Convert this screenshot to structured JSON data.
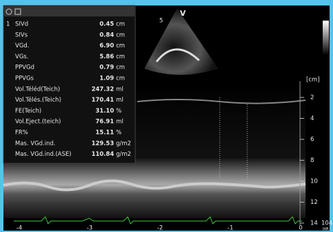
{
  "header": {
    "index": "1"
  },
  "measurements": [
    {
      "label": "SIVd",
      "value": "0.45",
      "unit": "cm"
    },
    {
      "label": "SIVs",
      "value": "0.84",
      "unit": "cm"
    },
    {
      "label": "VGd.",
      "value": "6.90",
      "unit": "cm"
    },
    {
      "label": "VGs.",
      "value": "5.86",
      "unit": "cm"
    },
    {
      "label": "PPVGd",
      "value": "0.79",
      "unit": "cm"
    },
    {
      "label": "PPVGs",
      "value": "1.09",
      "unit": "cm"
    },
    {
      "label": "Vol.Téléd(Teich)",
      "value": "247.32",
      "unit": "ml"
    },
    {
      "label": "Vol.Télés.(Teich)",
      "value": "170.41",
      "unit": "ml"
    },
    {
      "label": "FE(Teich)",
      "value": "31.10",
      "unit": "%"
    },
    {
      "label": "Vol.Eject.(teich)",
      "value": "76.91",
      "unit": "ml"
    },
    {
      "label": "FR%",
      "value": "15.11",
      "unit": "%"
    },
    {
      "label": "Mas. VGd.ind.",
      "value": "129.53",
      "unit": "g/m2"
    },
    {
      "label": "Mas. VGd.ind.(ASE)",
      "value": "110.84",
      "unit": "g/m2"
    }
  ],
  "sector_labels": {
    "depth_start": "5",
    "mode": "V"
  },
  "depth_scale": {
    "unit": "[cm]",
    "ticks": [
      "2",
      "4",
      "6",
      "8",
      "10",
      "12",
      "14"
    ]
  },
  "time_axis": {
    "ticks": [
      "-4",
      "-3",
      "-2",
      "-1",
      "0"
    ]
  },
  "heart_rate": {
    "value": "104",
    "label": "HR"
  }
}
